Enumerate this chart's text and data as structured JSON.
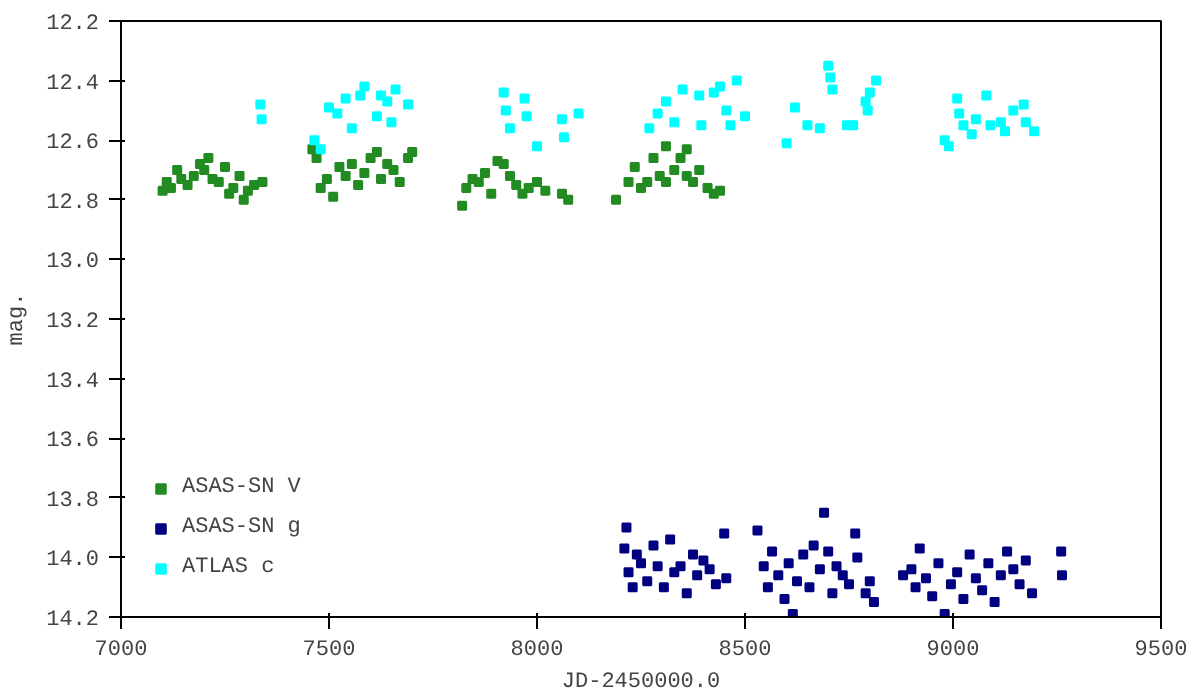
{
  "chart_data": {
    "type": "scatter",
    "xlabel": "JD-2450000.0",
    "ylabel": "mag.",
    "xlim": [
      7000,
      9500
    ],
    "xticks": [
      7000,
      7500,
      8000,
      8500,
      9000,
      9500
    ],
    "ylim": [
      14.2,
      12.2
    ],
    "yticks": [
      12.2,
      12.4,
      12.6,
      12.8,
      {
        "value": 13,
        "label": "13.0"
      },
      13.2,
      13.4,
      13.6,
      13.8,
      {
        "value": 14,
        "label": "14.0"
      },
      14.2
    ],
    "grid": false,
    "legend": "bottom left",
    "marker": "square",
    "series": [
      {
        "name": "ASAS-SN V",
        "color": "#228b22",
        "x": [
          7100,
          7110,
          7120,
          7135,
          7145,
          7160,
          7175,
          7190,
          7200,
          7210,
          7220,
          7235,
          7250,
          7260,
          7270,
          7285,
          7295,
          7305,
          7320,
          7340,
          7460,
          7470,
          7480,
          7495,
          7510,
          7525,
          7540,
          7555,
          7570,
          7585,
          7600,
          7615,
          7625,
          7640,
          7655,
          7670,
          7690,
          7700,
          7820,
          7830,
          7845,
          7860,
          7875,
          7890,
          7905,
          7920,
          7935,
          7950,
          7965,
          7980,
          8000,
          8020,
          8060,
          8075,
          8190,
          8220,
          8235,
          8250,
          8265,
          8280,
          8295,
          8310,
          8330,
          8345,
          8360,
          8375,
          8390,
          8410,
          8425,
          8440,
          8310,
          8360
        ],
        "values": [
          12.77,
          12.74,
          12.76,
          12.7,
          12.73,
          12.75,
          12.72,
          12.68,
          12.7,
          12.66,
          12.73,
          12.74,
          12.69,
          12.78,
          12.76,
          12.72,
          12.8,
          12.77,
          12.75,
          12.74,
          12.63,
          12.66,
          12.76,
          12.73,
          12.79,
          12.69,
          12.72,
          12.68,
          12.75,
          12.71,
          12.66,
          12.64,
          12.73,
          12.68,
          12.7,
          12.74,
          12.66,
          12.64,
          12.82,
          12.76,
          12.73,
          12.74,
          12.71,
          12.78,
          12.67,
          12.68,
          12.72,
          12.75,
          12.78,
          12.76,
          12.74,
          12.77,
          12.78,
          12.8,
          12.8,
          12.74,
          12.69,
          12.76,
          12.74,
          12.66,
          12.72,
          12.74,
          12.7,
          12.66,
          12.72,
          12.74,
          12.7,
          12.76,
          12.78,
          12.77,
          12.62,
          12.63
        ]
      },
      {
        "name": "ASAS-SN g",
        "color": "#000080",
        "x": [
          8210,
          8215,
          8220,
          8230,
          8240,
          8250,
          8265,
          8280,
          8290,
          8305,
          8320,
          8330,
          8345,
          8360,
          8375,
          8385,
          8400,
          8415,
          8430,
          8450,
          8455,
          8530,
          8545,
          8555,
          8565,
          8580,
          8595,
          8605,
          8615,
          8625,
          8640,
          8655,
          8665,
          8680,
          8690,
          8700,
          8710,
          8720,
          8735,
          8750,
          8765,
          8770,
          8790,
          8800,
          8810,
          8880,
          8900,
          8910,
          8920,
          8935,
          8950,
          8965,
          8980,
          8995,
          9010,
          9025,
          9040,
          9055,
          9070,
          9085,
          9100,
          9115,
          9130,
          9145,
          9160,
          9175,
          9190,
          9260,
          9262
        ],
        "values": [
          13.97,
          13.9,
          14.05,
          14.1,
          13.99,
          14.02,
          14.08,
          13.96,
          14.03,
          14.1,
          13.94,
          14.05,
          14.03,
          14.12,
          13.99,
          14.06,
          14.01,
          14.04,
          14.09,
          13.92,
          14.07,
          13.91,
          14.03,
          14.1,
          13.98,
          14.06,
          14.14,
          14.02,
          14.19,
          14.08,
          13.99,
          14.1,
          13.96,
          14.04,
          13.85,
          13.98,
          14.12,
          14.03,
          14.06,
          14.09,
          13.92,
          14.0,
          14.12,
          14.08,
          14.15,
          14.06,
          14.04,
          14.1,
          13.97,
          14.07,
          14.13,
          14.02,
          14.19,
          14.09,
          14.05,
          14.14,
          13.99,
          14.07,
          14.11,
          14.02,
          14.15,
          14.06,
          13.98,
          14.04,
          14.09,
          14.01,
          14.12,
          13.98,
          14.06
        ]
      },
      {
        "name": "ATLAS c",
        "color": "#00ffff",
        "x": [
          7335,
          7338,
          7465,
          7480,
          7500,
          7520,
          7540,
          7555,
          7575,
          7585,
          7615,
          7625,
          7640,
          7650,
          7660,
          7690,
          7920,
          7925,
          7935,
          7970,
          7975,
          8000,
          8060,
          8065,
          8100,
          8270,
          8290,
          8310,
          8330,
          8350,
          8390,
          8395,
          8425,
          8440,
          8455,
          8465,
          8480,
          8500,
          8600,
          8620,
          8650,
          8680,
          8700,
          8705,
          8710,
          8745,
          8760,
          8790,
          8795,
          8800,
          8815,
          8980,
          8990,
          9010,
          9015,
          9025,
          9045,
          9055,
          9080,
          9090,
          9115,
          9125,
          9145,
          9170,
          9175,
          9195
        ],
        "values": [
          12.48,
          12.53,
          12.6,
          12.63,
          12.49,
          12.51,
          12.46,
          12.56,
          12.45,
          12.42,
          12.52,
          12.45,
          12.47,
          12.54,
          12.43,
          12.48,
          12.44,
          12.5,
          12.56,
          12.46,
          12.52,
          12.62,
          12.53,
          12.59,
          12.51,
          12.56,
          12.51,
          12.47,
          12.54,
          12.43,
          12.45,
          12.55,
          12.44,
          12.42,
          12.5,
          12.55,
          12.4,
          12.52,
          12.61,
          12.49,
          12.55,
          12.56,
          12.35,
          12.39,
          12.43,
          12.55,
          12.55,
          12.47,
          12.5,
          12.44,
          12.4,
          12.6,
          12.62,
          12.46,
          12.51,
          12.55,
          12.58,
          12.53,
          12.45,
          12.55,
          12.54,
          12.57,
          12.5,
          12.48,
          12.54,
          12.57
        ]
      }
    ]
  }
}
